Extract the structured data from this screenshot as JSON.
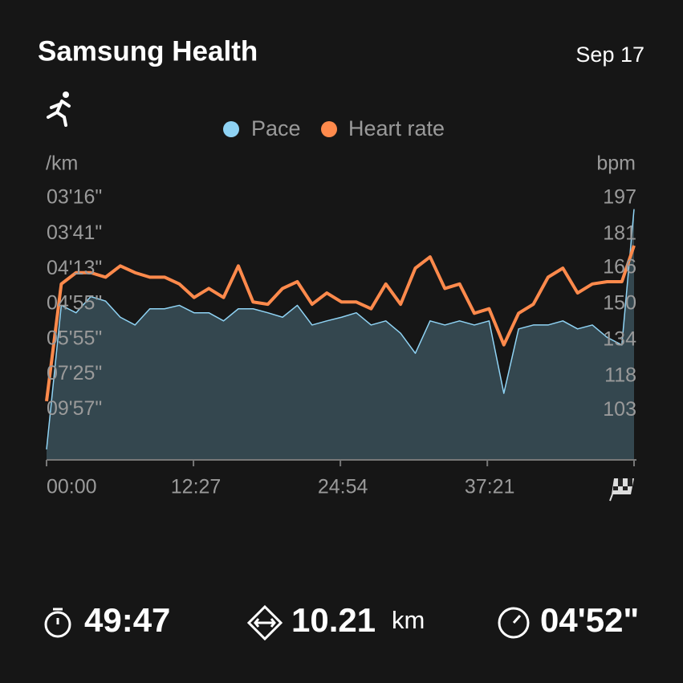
{
  "header": {
    "title": "Samsung Health",
    "date": "Sep 17"
  },
  "chart_data": {
    "type": "line",
    "y_label": "/km",
    "y2_label": "bpm",
    "x": [
      0,
      75,
      150,
      225,
      300,
      375,
      450,
      525,
      600,
      675,
      750,
      825,
      900,
      975,
      1050,
      1125,
      1200,
      1275,
      1350,
      1425,
      1500,
      1575,
      1650,
      1725,
      1800,
      1875,
      1950,
      2025,
      2100,
      2175,
      2250,
      2325,
      2400,
      2475,
      2550,
      2625,
      2700,
      2775,
      2850,
      2925,
      2987
    ],
    "xlim": [
      0,
      2987
    ],
    "xticks": [
      {
        "value": 0,
        "label": "00:00"
      },
      {
        "value": 747,
        "label": "12:27"
      },
      {
        "value": 1494,
        "label": "24:54"
      },
      {
        "value": 2241,
        "label": "37:21"
      }
    ],
    "ylim": [
      1158,
      196
    ],
    "yscale": "reciprocal",
    "yticks": [
      {
        "value": 196,
        "label": "03'16\""
      },
      {
        "value": 221,
        "label": "03'41\""
      },
      {
        "value": 253,
        "label": "04'13\""
      },
      {
        "value": 295,
        "label": "04'55\""
      },
      {
        "value": 355,
        "label": "05'55\""
      },
      {
        "value": 445,
        "label": "07'25\""
      },
      {
        "value": 597,
        "label": "09'57\""
      }
    ],
    "y2lim": [
      81,
      197
    ],
    "y2ticks": [
      197,
      181,
      166,
      150,
      134,
      118,
      103
    ],
    "series": [
      {
        "name": "Pace",
        "color": "#8fd3f4",
        "area_color": "#34474f",
        "values": [
          968,
          297,
          308,
          285,
          291,
          315,
          328,
          302,
          302,
          297,
          308,
          308,
          321,
          302,
          302,
          308,
          315,
          297,
          328,
          321,
          315,
          308,
          328,
          321,
          343,
          386,
          321,
          328,
          321,
          328,
          321,
          515,
          335,
          328,
          328,
          321,
          335,
          328,
          351,
          367,
          203
        ]
      },
      {
        "name": "Heart rate",
        "color": "#ff8a4c",
        "axis": "y2",
        "values": [
          107,
          159,
          164,
          164,
          162,
          167,
          164,
          162,
          162,
          159,
          153,
          157,
          153,
          167,
          151,
          150,
          157,
          160,
          150,
          155,
          151,
          151,
          148,
          159,
          150,
          166,
          171,
          157,
          159,
          146,
          148,
          132,
          146,
          150,
          162,
          166,
          155,
          159,
          160,
          160,
          176
        ]
      }
    ]
  },
  "stats": {
    "duration": "49:47",
    "distance": "10.21",
    "distance_unit": "km",
    "avg_pace": "04'52\""
  }
}
